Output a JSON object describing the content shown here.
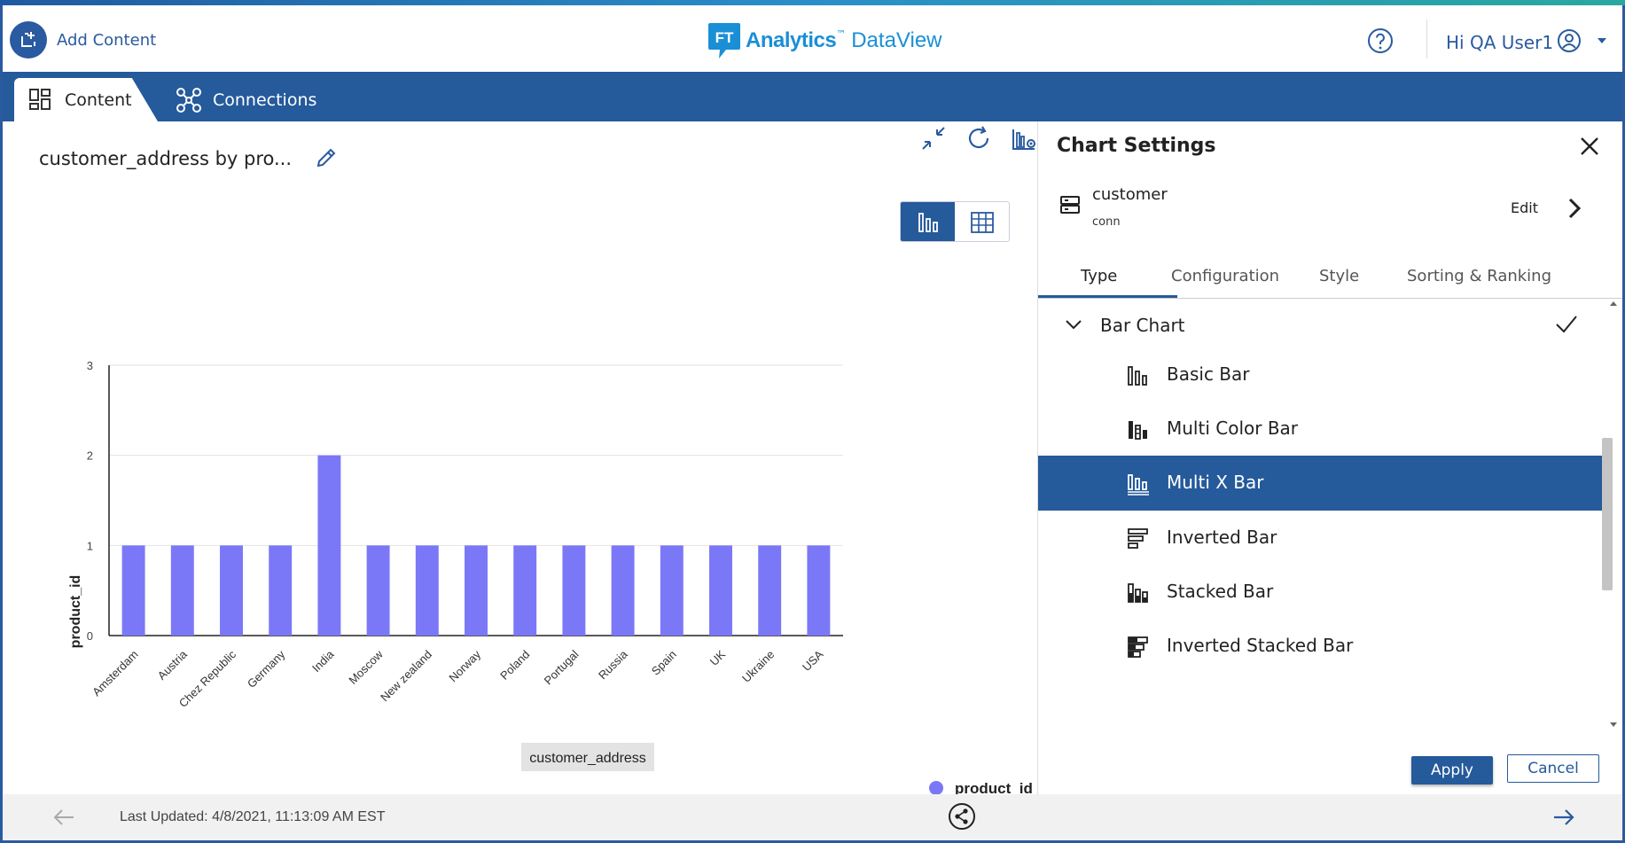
{
  "header": {
    "add_content_label": "Add Content",
    "brand_name": "Analytics",
    "brand_product": "DataView",
    "brand_mark": "FT",
    "brand_tm": "™",
    "user_greeting": "Hi QA User1"
  },
  "nav": {
    "tabs": [
      {
        "label": "Content",
        "active": true
      },
      {
        "label": "Connections",
        "active": false
      }
    ]
  },
  "chart_panel": {
    "title": "customer_address by pro...",
    "footer_updated": "Last Updated: 4/8/2021, 11:13:09 AM EST"
  },
  "chart_data": {
    "type": "bar",
    "title": "",
    "categories": [
      "Amsterdam",
      "Austria",
      "Chez Republic",
      "Germany",
      "India",
      "Moscow",
      "New zealand",
      "Norway",
      "Poland",
      "Portugal",
      "Russia",
      "Spain",
      "UK",
      "Ukraine",
      "USA"
    ],
    "series": [
      {
        "name": "product_id",
        "color": "#7b78f7",
        "values": [
          1,
          1,
          1,
          1,
          2,
          1,
          1,
          1,
          1,
          1,
          1,
          1,
          1,
          1,
          1
        ]
      }
    ],
    "xlabel": "customer_address",
    "ylabel": "product_id",
    "ylim": [
      0,
      3
    ],
    "yticks": [
      "0",
      "1",
      "2",
      "3"
    ],
    "grid": true,
    "legend": "bottom-right"
  },
  "settings": {
    "title": "Chart Settings",
    "connection_name": "customer",
    "connection_sub": "conn",
    "edit_label": "Edit",
    "tabs": [
      "Type",
      "Configuration",
      "Style",
      "Sorting & Ranking"
    ],
    "active_tab": "Type",
    "group_label": "Bar Chart",
    "items": [
      {
        "label": "Basic Bar",
        "icon": "basic-bar-icon"
      },
      {
        "label": "Multi Color Bar",
        "icon": "multi-color-bar-icon"
      },
      {
        "label": "Multi X Bar",
        "icon": "multi-x-bar-icon",
        "selected": true
      },
      {
        "label": "Inverted Bar",
        "icon": "inverted-bar-icon"
      },
      {
        "label": "Stacked Bar",
        "icon": "stacked-bar-icon"
      },
      {
        "label": "Inverted Stacked Bar",
        "icon": "inverted-stacked-bar-icon"
      }
    ],
    "apply_label": "Apply",
    "cancel_label": "Cancel"
  },
  "colors": {
    "primary": "#255a9b",
    "bar": "#7b78f7",
    "brand": "#1a8fd6"
  }
}
